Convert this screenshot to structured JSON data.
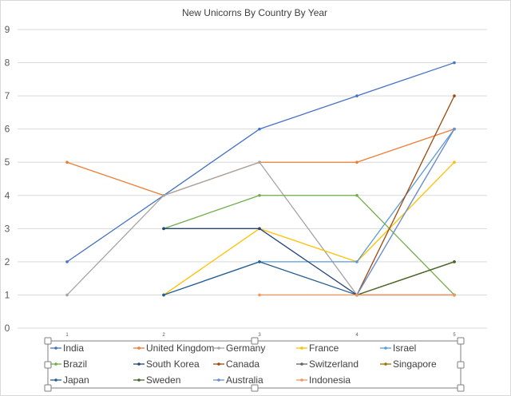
{
  "chart_data": {
    "type": "line",
    "title": "New Unicorns By Country By Year",
    "xlabel": "",
    "ylabel": "",
    "x": [
      1,
      2,
      3,
      4,
      5
    ],
    "ylim": [
      0,
      9
    ],
    "yticks": [
      0,
      1,
      2,
      3,
      4,
      5,
      6,
      7,
      8,
      9
    ],
    "grid": true,
    "legend_position": "bottom",
    "series": [
      {
        "name": "India",
        "color": "#4472C4",
        "values": [
          2,
          4,
          6,
          7,
          8
        ]
      },
      {
        "name": "United Kingdom",
        "color": "#ED7D31",
        "values": [
          5,
          4,
          5,
          5,
          6
        ]
      },
      {
        "name": "Germany",
        "color": "#A5A5A5",
        "values": [
          1,
          4,
          5,
          1,
          6
        ]
      },
      {
        "name": "France",
        "color": "#FFC000",
        "values": [
          null,
          1,
          3,
          2,
          5
        ]
      },
      {
        "name": "Israel",
        "color": "#5B9BD5",
        "values": [
          null,
          1,
          2,
          2,
          6
        ]
      },
      {
        "name": "Brazil",
        "color": "#70AD47",
        "values": [
          null,
          3,
          4,
          4,
          1
        ]
      },
      {
        "name": "South Korea",
        "color": "#264478",
        "values": [
          null,
          3,
          3,
          1,
          null
        ]
      },
      {
        "name": "Canada",
        "color": "#9E480E",
        "values": [
          null,
          null,
          null,
          1,
          7
        ]
      },
      {
        "name": "Switzerland",
        "color": "#636363",
        "values": [
          null,
          null,
          null,
          1,
          2
        ]
      },
      {
        "name": "Singapore",
        "color": "#997300",
        "values": [
          null,
          null,
          null,
          1,
          2
        ]
      },
      {
        "name": "Japan",
        "color": "#255E91",
        "values": [
          null,
          1,
          2,
          1,
          1
        ]
      },
      {
        "name": "Sweden",
        "color": "#43682B",
        "values": [
          null,
          null,
          null,
          1,
          2
        ]
      },
      {
        "name": "Australia",
        "color": "#698ED0",
        "values": [
          null,
          null,
          null,
          1,
          6
        ]
      },
      {
        "name": "Indonesia",
        "color": "#F1975A",
        "values": [
          null,
          null,
          1,
          1,
          1
        ]
      }
    ]
  }
}
